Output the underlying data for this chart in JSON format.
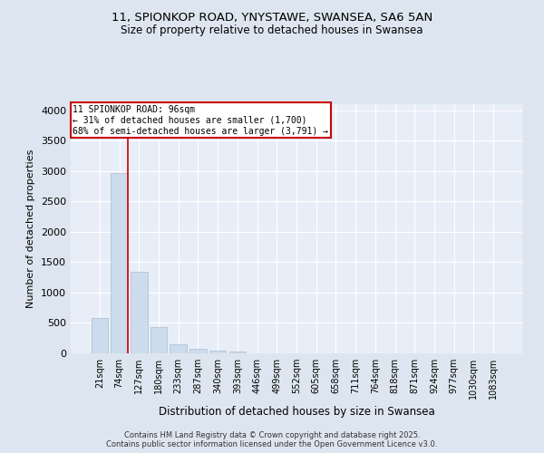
{
  "title_line1": "11, SPIONKOP ROAD, YNYSTAWE, SWANSEA, SA6 5AN",
  "title_line2": "Size of property relative to detached houses in Swansea",
  "xlabel": "Distribution of detached houses by size in Swansea",
  "ylabel": "Number of detached properties",
  "bar_color": "#ccdcee",
  "bar_edgecolor": "#aabcce",
  "categories": [
    "21sqm",
    "74sqm",
    "127sqm",
    "180sqm",
    "233sqm",
    "287sqm",
    "340sqm",
    "393sqm",
    "446sqm",
    "499sqm",
    "552sqm",
    "605sqm",
    "658sqm",
    "711sqm",
    "764sqm",
    "818sqm",
    "871sqm",
    "924sqm",
    "977sqm",
    "1030sqm",
    "1083sqm"
  ],
  "values": [
    580,
    2970,
    1340,
    430,
    155,
    75,
    45,
    30,
    0,
    0,
    0,
    0,
    0,
    0,
    0,
    0,
    0,
    0,
    0,
    0,
    0
  ],
  "ylim": [
    0,
    4100
  ],
  "yticks": [
    0,
    500,
    1000,
    1500,
    2000,
    2500,
    3000,
    3500,
    4000
  ],
  "vline_x": 1.45,
  "vline_color": "#cc0000",
  "annotation_title": "11 SPIONKOP ROAD: 96sqm",
  "annotation_line1": "← 31% of detached houses are smaller (1,700)",
  "annotation_line2": "68% of semi-detached houses are larger (3,791) →",
  "annotation_box_edgecolor": "#cc0000",
  "footer_line1": "Contains HM Land Registry data © Crown copyright and database right 2025.",
  "footer_line2": "Contains public sector information licensed under the Open Government Licence v3.0.",
  "background_color": "#dde6f0",
  "plot_background": "#e8eef8"
}
